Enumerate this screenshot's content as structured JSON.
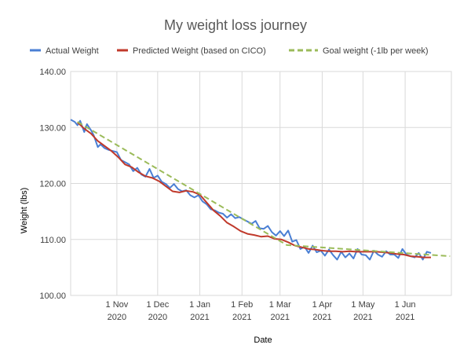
{
  "chart_data": {
    "type": "line",
    "title": "My weight loss journey",
    "xlabel": "Date",
    "ylabel": "Weight (lbs)",
    "ylim": [
      100,
      140
    ],
    "yticks": [
      "100.00",
      "110.00",
      "120.00",
      "130.00",
      "140.00"
    ],
    "xlim": [
      "2020-09-28",
      "2021-07-05"
    ],
    "xticks": [
      {
        "date": "2020-11-01",
        "line1": "1 Nov",
        "line2": "2020"
      },
      {
        "date": "2020-12-01",
        "line1": "1 Dec",
        "line2": "2020"
      },
      {
        "date": "2021-01-01",
        "line1": "1 Jan",
        "line2": "2021"
      },
      {
        "date": "2021-02-01",
        "line1": "1 Feb",
        "line2": "2021"
      },
      {
        "date": "2021-03-01",
        "line1": "1 Mar",
        "line2": "2021"
      },
      {
        "date": "2021-04-01",
        "line1": "1 Apr",
        "line2": "2021"
      },
      {
        "date": "2021-05-01",
        "line1": "1 May",
        "line2": "2021"
      },
      {
        "date": "2021-06-01",
        "line1": "1 Jun",
        "line2": "2021"
      }
    ],
    "grid": true,
    "legend_position": "top",
    "series": [
      {
        "name": "Actual Weight",
        "color": "#4a7fd4",
        "style": "solid",
        "x": [
          "2020-09-28",
          "2020-10-01",
          "2020-10-03",
          "2020-10-05",
          "2020-10-08",
          "2020-10-10",
          "2020-10-13",
          "2020-10-15",
          "2020-10-18",
          "2020-10-20",
          "2020-10-23",
          "2020-10-26",
          "2020-10-29",
          "2020-11-01",
          "2020-11-04",
          "2020-11-07",
          "2020-11-10",
          "2020-11-13",
          "2020-11-16",
          "2020-11-19",
          "2020-11-22",
          "2020-11-25",
          "2020-11-28",
          "2020-12-01",
          "2020-12-04",
          "2020-12-07",
          "2020-12-10",
          "2020-12-13",
          "2020-12-16",
          "2020-12-19",
          "2020-12-22",
          "2020-12-25",
          "2020-12-28",
          "2020-12-31",
          "2021-01-03",
          "2021-01-06",
          "2021-01-09",
          "2021-01-12",
          "2021-01-15",
          "2021-01-18",
          "2021-01-21",
          "2021-01-24",
          "2021-01-27",
          "2021-01-30",
          "2021-02-02",
          "2021-02-05",
          "2021-02-08",
          "2021-02-11",
          "2021-02-14",
          "2021-02-17",
          "2021-02-20",
          "2021-02-23",
          "2021-02-26",
          "2021-03-01",
          "2021-03-04",
          "2021-03-07",
          "2021-03-10",
          "2021-03-13",
          "2021-03-16",
          "2021-03-19",
          "2021-03-22",
          "2021-03-25",
          "2021-03-28",
          "2021-03-31",
          "2021-04-03",
          "2021-04-06",
          "2021-04-09",
          "2021-04-12",
          "2021-04-15",
          "2021-04-18",
          "2021-04-21",
          "2021-04-24",
          "2021-04-27",
          "2021-04-30",
          "2021-05-03",
          "2021-05-06",
          "2021-05-09",
          "2021-05-12",
          "2021-05-15",
          "2021-05-18",
          "2021-05-21",
          "2021-05-24",
          "2021-05-27",
          "2021-05-30",
          "2021-06-02",
          "2021-06-05",
          "2021-06-08",
          "2021-06-11",
          "2021-06-14",
          "2021-06-17",
          "2021-06-20"
        ],
        "y": [
          131.4,
          131.0,
          130.4,
          131.2,
          129.2,
          130.6,
          129.5,
          128.6,
          126.5,
          127.0,
          126.3,
          126.0,
          125.8,
          125.6,
          124.2,
          123.8,
          123.4,
          122.2,
          122.8,
          121.6,
          121.2,
          122.6,
          121.0,
          121.4,
          120.3,
          119.9,
          119.2,
          119.9,
          119.0,
          118.6,
          118.8,
          117.9,
          117.5,
          117.9,
          116.8,
          116.3,
          115.4,
          115.2,
          114.8,
          114.6,
          113.9,
          114.5,
          113.8,
          114.0,
          113.6,
          113.2,
          112.8,
          113.3,
          112.0,
          111.9,
          112.4,
          111.3,
          110.7,
          111.5,
          110.6,
          111.6,
          109.6,
          109.9,
          108.3,
          108.7,
          107.6,
          108.9,
          107.7,
          108.0,
          107.1,
          108.2,
          107.2,
          106.4,
          107.8,
          106.8,
          107.5,
          106.6,
          108.3,
          107.3,
          107.2,
          106.4,
          108.0,
          107.3,
          106.9,
          107.9,
          107.3,
          107.3,
          106.7,
          108.3,
          107.3,
          107.0,
          106.8,
          107.6,
          106.4,
          107.8,
          107.6
        ]
      },
      {
        "name": "Predicted Weight (based on CICO)",
        "color": "#c0392b",
        "style": "solid",
        "x": [
          "2020-10-03",
          "2020-10-08",
          "2020-10-13",
          "2020-10-18",
          "2020-10-23",
          "2020-10-28",
          "2020-11-02",
          "2020-11-07",
          "2020-11-12",
          "2020-11-17",
          "2020-11-22",
          "2020-11-27",
          "2020-12-02",
          "2020-12-07",
          "2020-12-12",
          "2020-12-17",
          "2020-12-22",
          "2020-12-27",
          "2021-01-01",
          "2021-01-06",
          "2021-01-11",
          "2021-01-16",
          "2021-01-21",
          "2021-01-26",
          "2021-01-31",
          "2021-02-05",
          "2021-02-10",
          "2021-02-15",
          "2021-02-20",
          "2021-02-25",
          "2021-03-02",
          "2021-03-07",
          "2021-03-12",
          "2021-03-17",
          "2021-03-22",
          "2021-03-27",
          "2021-04-01",
          "2021-04-06",
          "2021-04-11",
          "2021-04-16",
          "2021-04-21",
          "2021-04-26",
          "2021-05-01",
          "2021-05-06",
          "2021-05-11",
          "2021-05-16",
          "2021-05-21",
          "2021-05-26",
          "2021-05-31",
          "2021-06-05",
          "2021-06-10",
          "2021-06-15",
          "2021-06-20"
        ],
        "y": [
          130.9,
          129.8,
          128.9,
          127.6,
          126.7,
          125.8,
          124.7,
          123.4,
          122.9,
          122.0,
          121.3,
          121.0,
          120.4,
          119.5,
          118.6,
          118.4,
          118.7,
          118.5,
          118.0,
          116.6,
          115.2,
          114.2,
          113.0,
          112.3,
          111.5,
          111.0,
          110.8,
          110.5,
          110.6,
          110.1,
          110.0,
          109.5,
          108.9,
          108.6,
          108.3,
          108.2,
          108.0,
          107.9,
          107.9,
          107.8,
          107.9,
          107.8,
          107.8,
          107.8,
          107.8,
          107.7,
          107.6,
          107.4,
          107.3,
          107.0,
          106.9,
          106.8,
          106.8
        ]
      },
      {
        "name": "Goal weight (-1lb per week)",
        "color": "#9bbb59",
        "style": "dashed",
        "x": [
          "2020-10-03",
          "2021-03-06",
          "2021-07-04"
        ],
        "y": [
          131.0,
          109.0,
          107.0
        ]
      }
    ]
  }
}
